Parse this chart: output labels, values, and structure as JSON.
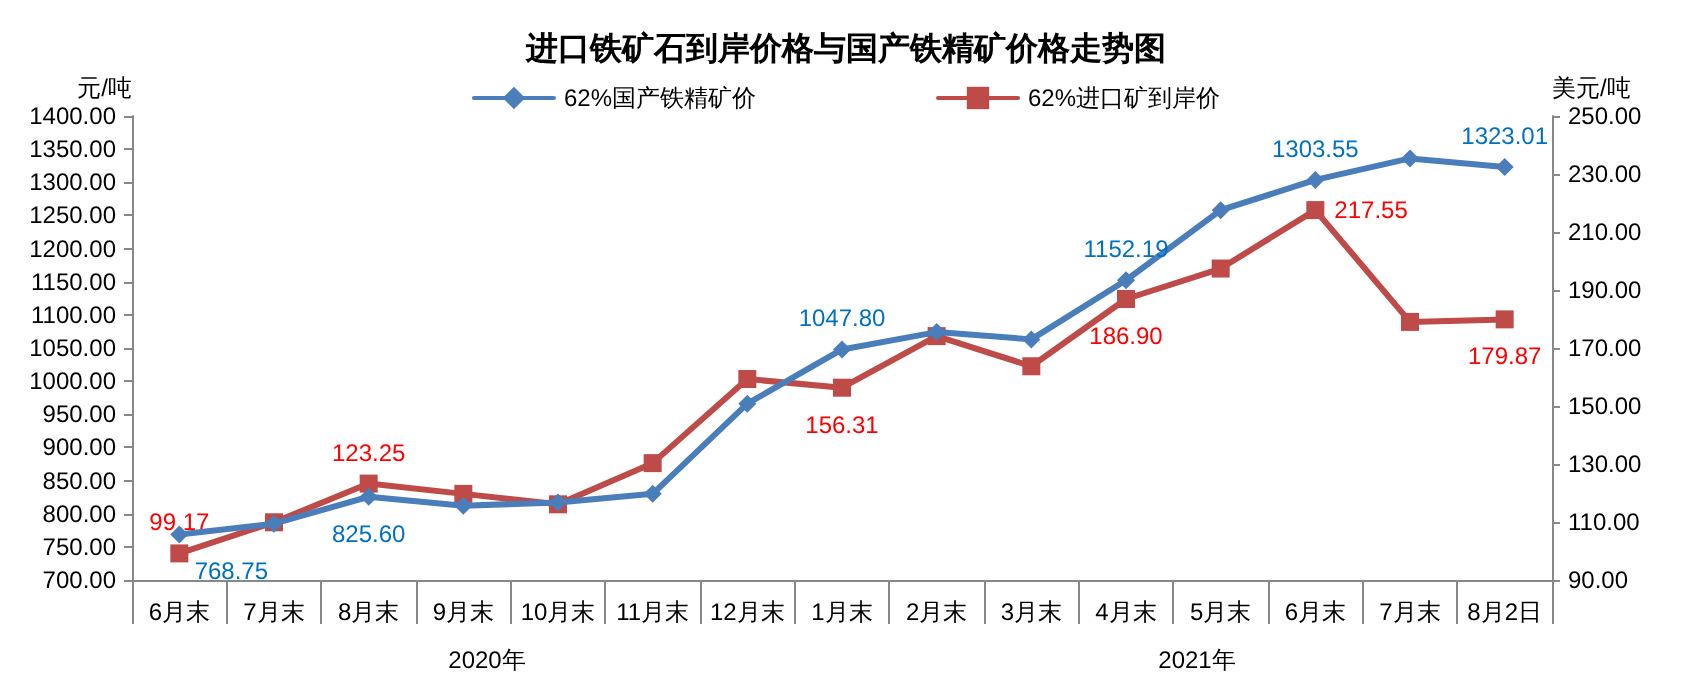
{
  "chart_data": {
    "type": "line",
    "title": "进口铁矿石到岸价格与国产铁精矿价格走势图",
    "ylabel": "元/吨",
    "y2label": "美元/吨",
    "categories": [
      "6月末",
      "7月末",
      "8月末",
      "9月末",
      "10月末",
      "11月末",
      "12月末",
      "1月末",
      "2月末",
      "3月末",
      "4月末",
      "5月末",
      "6月末",
      "7月末",
      "8月2日"
    ],
    "series": [
      {
        "name": "62%国产铁精矿价",
        "color": "#4a7ebb",
        "marker": "diamond",
        "values": [
          768.75,
          785,
          825.6,
          812,
          817,
          830,
          966,
          1047.8,
          1074,
          1063,
          1152.19,
          1258,
          1303.55,
          1336,
          1323.01
        ],
        "value_labels": [
          "768.75",
          null,
          "825.60",
          null,
          null,
          null,
          null,
          "1047.80",
          null,
          null,
          "1152.19",
          null,
          "1303.55",
          null,
          "1323.01"
        ]
      },
      {
        "name": "62%进口矿到岸价",
        "color": "#be4b48",
        "marker": "square",
        "axis": "y2",
        "values": [
          99.17,
          109.9,
          123.25,
          119.7,
          116.1,
          130.3,
          159.3,
          156.31,
          174.1,
          163.7,
          186.9,
          197.4,
          217.55,
          179,
          179.87
        ],
        "value_labels": [
          "99.17",
          null,
          "123.25",
          null,
          null,
          null,
          null,
          "156.31",
          null,
          null,
          "186.90",
          null,
          "217.55",
          null,
          "179.87"
        ]
      }
    ],
    "ylim": [
      700,
      1400
    ],
    "yticks": [
      {
        "value": 700,
        "label": "700.00"
      },
      {
        "value": 750,
        "label": "750.00"
      },
      {
        "value": 800,
        "label": "800.00"
      },
      {
        "value": 850,
        "label": "850.00"
      },
      {
        "value": 900,
        "label": "900.00"
      },
      {
        "value": 950,
        "label": "950.00"
      },
      {
        "value": 1000,
        "label": "1000.00"
      },
      {
        "value": 1050,
        "label": "1050.00"
      },
      {
        "value": 1100,
        "label": "1100.00"
      },
      {
        "value": 1150,
        "label": "1150.00"
      },
      {
        "value": 1200,
        "label": "1200.00"
      },
      {
        "value": 1250,
        "label": "1250.00"
      },
      {
        "value": 1300,
        "label": "1300.00"
      },
      {
        "value": 1350,
        "label": "1350.00"
      },
      {
        "value": 1400,
        "label": "1400.00"
      }
    ],
    "y2lim": [
      90,
      250
    ],
    "y2ticks": [
      {
        "value": 90,
        "label": "90.00"
      },
      {
        "value": 110,
        "label": "110.00"
      },
      {
        "value": 130,
        "label": "130.00"
      },
      {
        "value": 150,
        "label": "150.00"
      },
      {
        "value": 170,
        "label": "170.00"
      },
      {
        "value": 190,
        "label": "190.00"
      },
      {
        "value": 210,
        "label": "210.00"
      },
      {
        "value": 230,
        "label": "230.00"
      },
      {
        "value": 250,
        "label": "250.00"
      }
    ],
    "annotations": [
      "2020年",
      "2021年"
    ],
    "legend": "top",
    "grid": false,
    "line_style": "solid"
  }
}
